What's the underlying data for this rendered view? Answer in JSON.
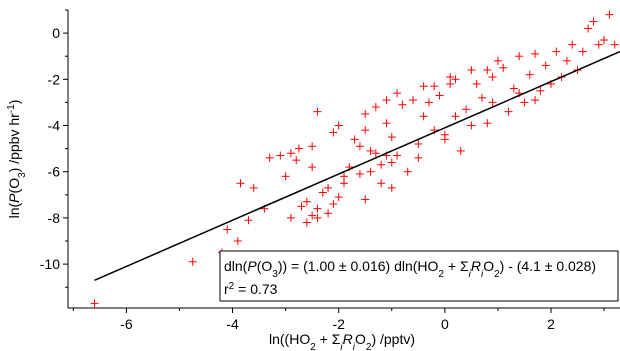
{
  "chart_data": {
    "type": "scatter",
    "title": "",
    "xlabel_parts": [
      {
        "t": "ln((HO"
      },
      {
        "t": "2",
        "sub": true
      },
      {
        "t": " + Σ"
      },
      {
        "t": "i",
        "sub": true,
        "italic": true
      },
      {
        "t": "R",
        "italic": true
      },
      {
        "t": "i",
        "sub": true,
        "italic": true
      },
      {
        "t": "O"
      },
      {
        "t": "2",
        "sub": true
      },
      {
        "t": ") /pptv)"
      }
    ],
    "ylabel_parts": [
      {
        "t": "ln("
      },
      {
        "t": "P",
        "italic": true
      },
      {
        "t": "(O"
      },
      {
        "t": "3",
        "sub": true
      },
      {
        "t": ") /ppbv hr"
      },
      {
        "t": "-1",
        "sup": true
      },
      {
        "t": ")"
      }
    ],
    "xlim": [
      -7.1,
      3.3
    ],
    "ylim": [
      -11.9,
      1.0
    ],
    "xticks": [
      -6,
      -4,
      -2,
      0,
      2
    ],
    "yticks": [
      0,
      -2,
      -4,
      -6,
      -8,
      -10
    ],
    "marker": "+",
    "marker_color": "#ff0000",
    "fit_line": {
      "color": "#000000",
      "slope": 1.0,
      "intercept": -4.1,
      "x_range": [
        -6.6,
        3.3
      ]
    },
    "annotation": {
      "line1_parts": [
        {
          "t": "dln("
        },
        {
          "t": "P",
          "italic": true
        },
        {
          "t": "(O"
        },
        {
          "t": "3",
          "sub": true
        },
        {
          "t": ")) = (1.00 ± 0.016) dln(HO"
        },
        {
          "t": "2",
          "sub": true
        },
        {
          "t": " + Σ"
        },
        {
          "t": "i",
          "sub": true,
          "italic": true
        },
        {
          "t": "R",
          "italic": true
        },
        {
          "t": "i",
          "sub": true,
          "italic": true
        },
        {
          "t": "O"
        },
        {
          "t": "2",
          "sub": true
        },
        {
          "t": ") - (4.1 ± 0.028)"
        }
      ],
      "line2_parts": [
        {
          "t": "r"
        },
        {
          "t": "2",
          "sup": true
        },
        {
          "t": " = 0.73"
        }
      ]
    },
    "series": [
      {
        "points": [
          [
            -6.6,
            -11.7
          ],
          [
            -4.75,
            -9.9
          ],
          [
            -4.2,
            -9.5
          ],
          [
            -3.9,
            -9.0
          ],
          [
            -3.85,
            -6.5
          ],
          [
            -3.6,
            -6.7
          ],
          [
            -3.3,
            -5.4
          ],
          [
            -3.1,
            -5.3
          ],
          [
            -2.9,
            -5.2
          ],
          [
            -2.75,
            -5.0
          ],
          [
            -2.8,
            -5.5
          ],
          [
            -2.5,
            -4.9
          ],
          [
            -2.6,
            -7.3
          ],
          [
            -2.7,
            -7.5
          ],
          [
            -2.6,
            -8.2
          ],
          [
            -2.5,
            -7.9
          ],
          [
            -2.4,
            -7.6
          ],
          [
            -2.3,
            -6.9
          ],
          [
            -2.2,
            -6.7
          ],
          [
            -2.4,
            -8.0
          ],
          [
            -2.9,
            -8.0
          ],
          [
            -2.1,
            -7.4
          ],
          [
            -2.0,
            -7.1
          ],
          [
            -2.2,
            -7.8
          ],
          [
            -2.1,
            -4.3
          ],
          [
            -1.7,
            -4.6
          ],
          [
            -2.4,
            -3.4
          ],
          [
            -1.3,
            -3.2
          ],
          [
            -1.5,
            -4.2
          ],
          [
            -1.1,
            -3.9
          ],
          [
            -1.6,
            -4.9
          ],
          [
            -1.3,
            -5.2
          ],
          [
            -1.0,
            -4.5
          ],
          [
            -0.8,
            -3.1
          ],
          [
            -0.6,
            -2.9
          ],
          [
            -1.8,
            -5.8
          ],
          [
            -1.9,
            -6.2
          ],
          [
            -1.4,
            -6.0
          ],
          [
            -1.5,
            -7.2
          ],
          [
            -1.2,
            -6.5
          ],
          [
            -1.0,
            -6.7
          ],
          [
            -0.7,
            -6.0
          ],
          [
            -0.5,
            -5.4
          ],
          [
            -1.0,
            -5.6
          ],
          [
            -0.4,
            -3.6
          ],
          [
            -0.2,
            -4.2
          ],
          [
            0.0,
            -4.6
          ],
          [
            -0.3,
            -3.0
          ],
          [
            -0.1,
            -2.7
          ],
          [
            0.1,
            -2.2
          ],
          [
            0.2,
            -3.6
          ],
          [
            0.3,
            -5.1
          ],
          [
            -0.4,
            -2.3
          ],
          [
            0.6,
            -2.2
          ],
          [
            0.2,
            -2.0
          ],
          [
            0.9,
            -1.9
          ],
          [
            1.1,
            -1.5
          ],
          [
            1.3,
            -2.4
          ],
          [
            1.6,
            -1.8
          ],
          [
            1.7,
            -2.9
          ],
          [
            1.9,
            -1.4
          ],
          [
            0.7,
            -2.8
          ],
          [
            0.4,
            -3.3
          ],
          [
            0.8,
            -3.9
          ],
          [
            1.2,
            -3.4
          ],
          [
            1.4,
            -2.6
          ],
          [
            2.0,
            -2.2
          ],
          [
            2.3,
            -1.2
          ],
          [
            2.6,
            -0.8
          ],
          [
            2.9,
            -0.5
          ],
          [
            3.0,
            -0.3
          ],
          [
            2.7,
            0.2
          ],
          [
            3.1,
            0.8
          ],
          [
            2.8,
            0.5
          ],
          [
            3.2,
            -0.5
          ],
          [
            2.5,
            -1.6
          ],
          [
            2.2,
            -1.9
          ],
          [
            1.8,
            -2.5
          ],
          [
            1.5,
            -3.0
          ],
          [
            0.9,
            -3.0
          ],
          [
            0.5,
            -4.0
          ],
          [
            0.0,
            -4.4
          ],
          [
            -0.5,
            -4.8
          ],
          [
            -0.9,
            -5.3
          ],
          [
            -1.2,
            -5.7
          ],
          [
            -1.6,
            -6.1
          ],
          [
            -1.9,
            -6.5
          ],
          [
            -1.4,
            -5.1
          ],
          [
            -1.1,
            -5.3
          ],
          [
            0.8,
            -1.6
          ],
          [
            1.0,
            -1.2
          ],
          [
            1.4,
            -1.0
          ],
          [
            1.7,
            -0.9
          ],
          [
            2.1,
            -0.8
          ],
          [
            2.4,
            -0.5
          ],
          [
            0.5,
            -1.6
          ],
          [
            0.1,
            -1.9
          ],
          [
            -0.2,
            -2.3
          ],
          [
            -0.9,
            -2.6
          ],
          [
            -1.1,
            -2.9
          ],
          [
            -1.5,
            -3.5
          ],
          [
            -2.0,
            -4.0
          ],
          [
            -2.5,
            -5.8
          ],
          [
            -3.0,
            -6.2
          ],
          [
            -3.4,
            -7.6
          ],
          [
            -3.7,
            -8.1
          ],
          [
            -4.1,
            -8.5
          ]
        ]
      }
    ]
  }
}
